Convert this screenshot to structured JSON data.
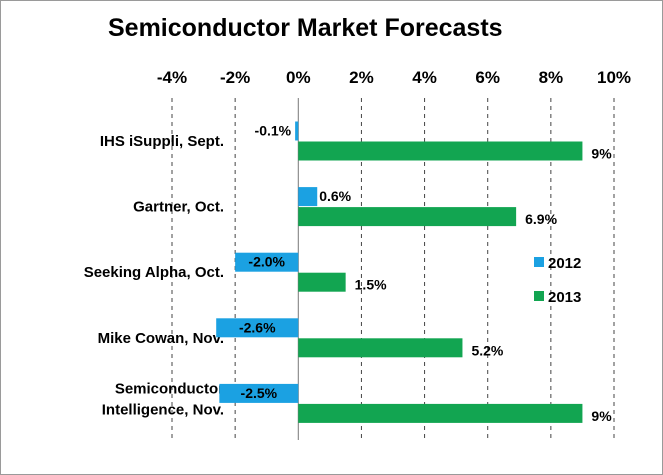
{
  "chart_data": {
    "type": "bar",
    "orientation": "horizontal",
    "title": "Semiconductor Market Forecasts",
    "xlim": [
      -4,
      10
    ],
    "x_ticks": [
      "-4%",
      "-2%",
      "0%",
      "2%",
      "4%",
      "6%",
      "8%",
      "10%"
    ],
    "x_tick_values": [
      -4,
      -2,
      0,
      2,
      4,
      6,
      8,
      10
    ],
    "grid": "vertical dashed",
    "legend_position": "right",
    "categories": [
      [
        "IHS iSuppli, Sept."
      ],
      [
        "Gartner, Oct."
      ],
      [
        "Seeking Alpha, Oct."
      ],
      [
        "Mike Cowan, Nov."
      ],
      [
        "Semiconductor",
        "Intelligence, Nov."
      ]
    ],
    "series": [
      {
        "name": "2012",
        "color": "#1ba1e2",
        "values": [
          -0.1,
          0.6,
          -2.0,
          -2.6,
          -2.5
        ],
        "labels": [
          "-0.1%",
          "0.6%",
          "-2.0%",
          "-2.6%",
          "-2.5%"
        ]
      },
      {
        "name": "2013",
        "color": "#12a551",
        "values": [
          9,
          6.9,
          1.5,
          5.2,
          9
        ],
        "labels": [
          "9%",
          "6.9%",
          "1.5%",
          "5.2%",
          "9%"
        ]
      }
    ]
  }
}
